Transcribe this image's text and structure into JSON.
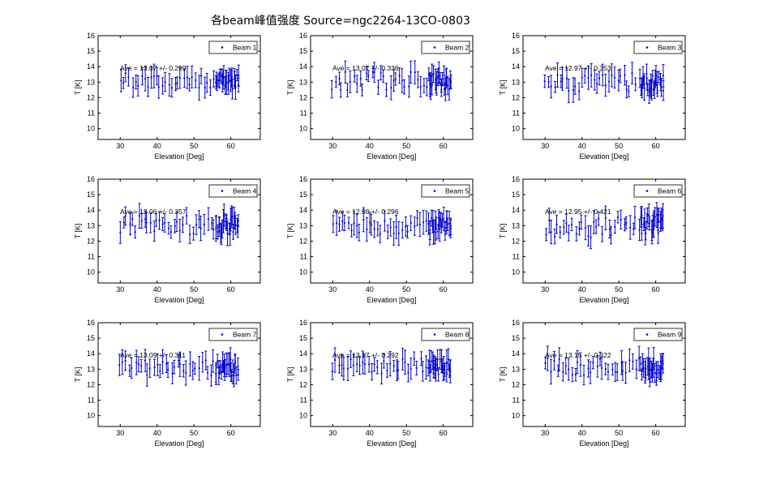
{
  "figure": {
    "title": "各beam峰值强度 Source=ngc2264-13CO-0803"
  },
  "chart_data": [
    {
      "type": "scatter",
      "legend": "Beam 1",
      "ave_label": "Ave = 13.07 +/- 0.299",
      "mean": 13.07,
      "std": 0.299,
      "xlabel": "Elevation [Deg]",
      "ylabel": "T [K]",
      "xlim": [
        24,
        68
      ],
      "ylim": [
        9.3,
        16
      ],
      "xticks": [
        30,
        40,
        50,
        60
      ],
      "yticks": [
        10,
        11,
        12,
        13,
        14,
        15,
        16
      ],
      "legend_position": "top-right"
    },
    {
      "type": "scatter",
      "legend": "Beam 2",
      "ave_label": "Ave = 13.07 +/- 0.336",
      "mean": 13.07,
      "std": 0.336,
      "xlabel": "Elevation [Deg]",
      "ylabel": "T [K]",
      "xlim": [
        24,
        68
      ],
      "ylim": [
        9.3,
        16
      ],
      "xticks": [
        30,
        40,
        50,
        60
      ],
      "yticks": [
        10,
        11,
        12,
        13,
        14,
        15,
        16
      ],
      "legend_position": "top-right"
    },
    {
      "type": "scatter",
      "legend": "Beam 3",
      "ave_label": "Ave = 12.97 +/- 0.353",
      "mean": 12.97,
      "std": 0.353,
      "xlabel": "Elevation [Deg]",
      "ylabel": "T [K]",
      "xlim": [
        24,
        68
      ],
      "ylim": [
        9.3,
        16
      ],
      "xticks": [
        30,
        40,
        50,
        60
      ],
      "yticks": [
        10,
        11,
        12,
        13,
        14,
        15,
        16
      ],
      "legend_position": "top-right"
    },
    {
      "type": "scatter",
      "legend": "Beam 4",
      "ave_label": "Ave = 13.06 +/- 0.357",
      "mean": 13.06,
      "std": 0.357,
      "xlabel": "Elevation [Deg]",
      "ylabel": "T [K]",
      "xlim": [
        24,
        68
      ],
      "ylim": [
        9.3,
        16
      ],
      "xticks": [
        30,
        40,
        50,
        60
      ],
      "yticks": [
        10,
        11,
        12,
        13,
        14,
        15,
        16
      ],
      "legend_position": "top-right"
    },
    {
      "type": "scatter",
      "legend": "Beam 5",
      "ave_label": "Ave = 12.98 +/- 0.296",
      "mean": 12.98,
      "std": 0.296,
      "xlabel": "Elevation [Deg]",
      "ylabel": "T [K]",
      "xlim": [
        24,
        68
      ],
      "ylim": [
        9.3,
        16
      ],
      "xticks": [
        30,
        40,
        50,
        60
      ],
      "yticks": [
        10,
        11,
        12,
        13,
        14,
        15,
        16
      ],
      "legend_position": "top-right"
    },
    {
      "type": "scatter",
      "legend": "Beam 6",
      "ave_label": "Ave = 12.95 +/- 0.421",
      "mean": 12.95,
      "std": 0.421,
      "xlabel": "Elevation [Deg]",
      "ylabel": "T [K]",
      "xlim": [
        24,
        68
      ],
      "ylim": [
        9.3,
        16
      ],
      "xticks": [
        30,
        40,
        50,
        60
      ],
      "yticks": [
        10,
        11,
        12,
        13,
        14,
        15,
        16
      ],
      "legend_position": "top-right"
    },
    {
      "type": "scatter",
      "legend": "Beam 7",
      "ave_label": "Ave = 13.09 +/- 0.311",
      "mean": 13.09,
      "std": 0.311,
      "xlabel": "Elevation [Deg]",
      "ylabel": "T [K]",
      "xlim": [
        24,
        68
      ],
      "ylim": [
        9.3,
        16
      ],
      "xticks": [
        30,
        40,
        50,
        60
      ],
      "yticks": [
        10,
        11,
        12,
        13,
        14,
        15,
        16
      ],
      "legend_position": "top-right"
    },
    {
      "type": "scatter",
      "legend": "Beam 8",
      "ave_label": "Ave = 13.17 +/- 0.292",
      "mean": 13.17,
      "std": 0.292,
      "xlabel": "Elevation [Deg]",
      "ylabel": "T [K]",
      "xlim": [
        24,
        68
      ],
      "ylim": [
        9.3,
        16
      ],
      "xticks": [
        30,
        40,
        50,
        60
      ],
      "yticks": [
        10,
        11,
        12,
        13,
        14,
        15,
        16
      ],
      "legend_position": "top-right"
    },
    {
      "type": "scatter",
      "legend": "Beam 9",
      "ave_label": "Ave = 13.15 +/- 0.322",
      "mean": 13.15,
      "std": 0.322,
      "xlabel": "Elevation [Deg]",
      "ylabel": "T [K]",
      "xlim": [
        24,
        68
      ],
      "ylim": [
        9.3,
        16
      ],
      "xticks": [
        30,
        40,
        50,
        60
      ],
      "yticks": [
        10,
        11,
        12,
        13,
        14,
        15,
        16
      ],
      "legend_position": "top-right"
    }
  ]
}
